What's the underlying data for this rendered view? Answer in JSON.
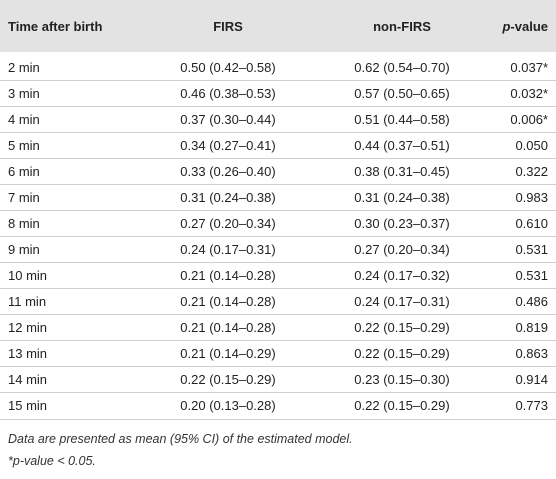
{
  "table": {
    "header": [
      "Time after birth",
      "FIRS",
      "non-FIRS",
      "p-value"
    ],
    "rows": [
      [
        "2 min",
        "0.50 (0.42–0.58)",
        "0.62 (0.54–0.70)",
        "0.037*"
      ],
      [
        "3 min",
        "0.46 (0.38–0.53)",
        "0.57 (0.50–0.65)",
        "0.032*"
      ],
      [
        "4 min",
        "0.37 (0.30–0.44)",
        "0.51 (0.44–0.58)",
        "0.006*"
      ],
      [
        "5 min",
        "0.34 (0.27–0.41)",
        "0.44 (0.37–0.51)",
        "0.050"
      ],
      [
        "6 min",
        "0.33 (0.26–0.40)",
        "0.38 (0.31–0.45)",
        "0.322"
      ],
      [
        "7 min",
        "0.31 (0.24–0.38)",
        "0.31 (0.24–0.38)",
        "0.983"
      ],
      [
        "8 min",
        "0.27 (0.20–0.34)",
        "0.30 (0.23–0.37)",
        "0.610"
      ],
      [
        "9 min",
        "0.24 (0.17–0.31)",
        "0.27 (0.20–0.34)",
        "0.531"
      ],
      [
        "10 min",
        "0.21 (0.14–0.28)",
        "0.24 (0.17–0.32)",
        "0.531"
      ],
      [
        "11 min",
        "0.21 (0.14–0.28)",
        "0.24 (0.17–0.31)",
        "0.486"
      ],
      [
        "12 min",
        "0.21 (0.14–0.28)",
        "0.22 (0.15–0.29)",
        "0.819"
      ],
      [
        "13 min",
        "0.21 (0.14–0.29)",
        "0.22 (0.15–0.29)",
        "0.863"
      ],
      [
        "14 min",
        "0.22 (0.15–0.29)",
        "0.23 (0.15–0.30)",
        "0.914"
      ],
      [
        "15 min",
        "0.20 (0.13–0.28)",
        "0.22 (0.15–0.29)",
        "0.773"
      ]
    ]
  },
  "footnotes": [
    "Data are presented as mean (95% CI) of the estimated model.",
    "*p-value < 0.05."
  ]
}
